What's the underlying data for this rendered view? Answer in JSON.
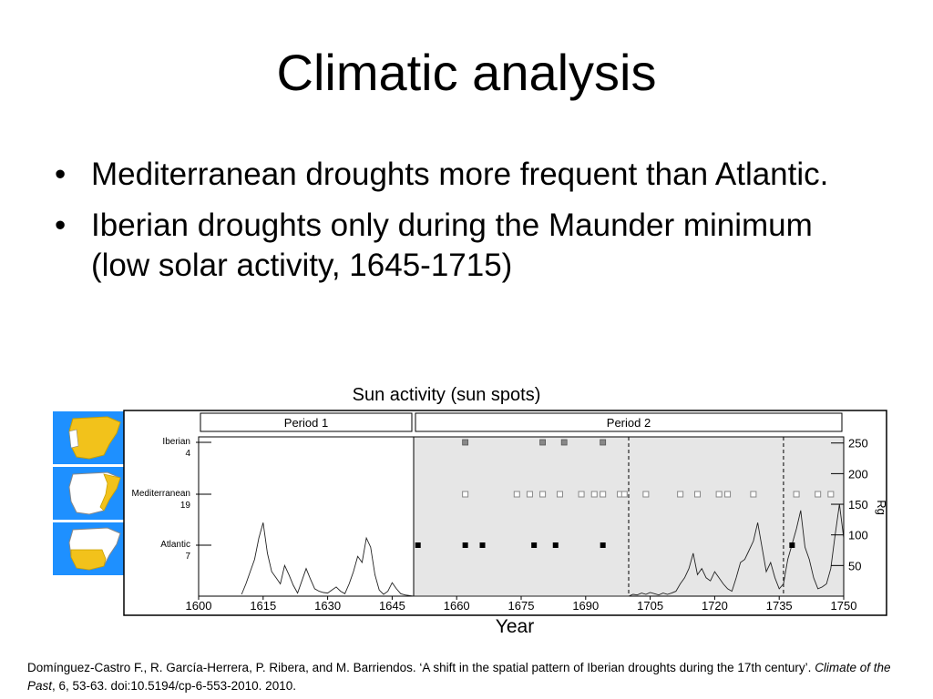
{
  "slide": {
    "title": "Climatic analysis",
    "bullets": [
      "Mediterranean droughts more frequent than Atlantic.",
      "Iberian droughts only during the Maunder minimum (low solar activity, 1645-1715)"
    ],
    "chart_caption": "Sun activity (sun spots)",
    "x_caption": "Year",
    "citation": {
      "part1": "Domínguez-Castro F., R. García-Herrera, P. Ribera, and M. Barriendos. ‘A shift in the spatial pattern of Iberian droughts during the 17th century’. ",
      "journal": "Climate of the Past",
      "part2": ", 6, 53-63. doi:10.5194/cp-6-553-2010. 2010."
    }
  },
  "maps": [
    {
      "name": "iberian",
      "highlight": "all"
    },
    {
      "name": "mediterranean",
      "highlight": "east"
    },
    {
      "name": "atlantic",
      "highlight": "south-west"
    }
  ],
  "colors": {
    "map_bg": "#1e90ff",
    "map_fill": "#f2c21b",
    "map_plain": "#ffffff",
    "shade": "#e6e6e6",
    "marker": "#000000"
  },
  "chart_data": {
    "type": "scatter",
    "periods": [
      {
        "label": "Period 1",
        "from": 1600,
        "to": 1650
      },
      {
        "label": "Period 2",
        "from": 1650,
        "to": 1750
      }
    ],
    "xlim": [
      1600,
      1750
    ],
    "x_ticks": [
      1600,
      1615,
      1630,
      1645,
      1660,
      1675,
      1690,
      1705,
      1720,
      1735,
      1750
    ],
    "y_right_label": "Rg",
    "y_right_ticks": [
      50,
      100,
      150,
      200,
      250
    ],
    "y_right_lim": [
      0,
      260
    ],
    "dashed_lines": [
      1700,
      1736
    ],
    "series": [
      {
        "name": "Iberian",
        "count": "4",
        "style": "gray-filled",
        "years": [
          1662,
          1680,
          1685,
          1694
        ]
      },
      {
        "name": "Mediterranean",
        "count": "19",
        "style": "open",
        "years": [
          1662,
          1674,
          1677,
          1680,
          1684,
          1689,
          1692,
          1694,
          1698,
          1699,
          1704,
          1712,
          1716,
          1721,
          1723,
          1729,
          1739,
          1744,
          1747
        ]
      },
      {
        "name": "Atlantic",
        "count": "7",
        "style": "black-filled",
        "years": [
          1651,
          1662,
          1666,
          1678,
          1683,
          1694,
          1738
        ]
      }
    ],
    "sunspots": [
      [
        1610,
        3
      ],
      [
        1611,
        20
      ],
      [
        1612,
        40
      ],
      [
        1613,
        60
      ],
      [
        1614,
        95
      ],
      [
        1615,
        120
      ],
      [
        1616,
        70
      ],
      [
        1617,
        40
      ],
      [
        1618,
        30
      ],
      [
        1619,
        20
      ],
      [
        1620,
        50
      ],
      [
        1621,
        35
      ],
      [
        1622,
        18
      ],
      [
        1623,
        5
      ],
      [
        1624,
        25
      ],
      [
        1625,
        45
      ],
      [
        1626,
        28
      ],
      [
        1627,
        12
      ],
      [
        1628,
        8
      ],
      [
        1629,
        6
      ],
      [
        1630,
        5
      ],
      [
        1631,
        10
      ],
      [
        1632,
        15
      ],
      [
        1633,
        8
      ],
      [
        1634,
        4
      ],
      [
        1635,
        20
      ],
      [
        1636,
        40
      ],
      [
        1637,
        65
      ],
      [
        1638,
        55
      ],
      [
        1639,
        95
      ],
      [
        1640,
        80
      ],
      [
        1641,
        35
      ],
      [
        1642,
        10
      ],
      [
        1643,
        3
      ],
      [
        1644,
        8
      ],
      [
        1645,
        22
      ],
      [
        1646,
        12
      ],
      [
        1647,
        4
      ],
      [
        1648,
        2
      ],
      [
        1649,
        1
      ],
      [
        1650,
        0
      ],
      [
        1700,
        0
      ],
      [
        1701,
        3
      ],
      [
        1702,
        2
      ],
      [
        1703,
        5
      ],
      [
        1704,
        3
      ],
      [
        1705,
        6
      ],
      [
        1706,
        4
      ],
      [
        1707,
        2
      ],
      [
        1708,
        5
      ],
      [
        1709,
        3
      ],
      [
        1710,
        5
      ],
      [
        1711,
        8
      ],
      [
        1712,
        20
      ],
      [
        1713,
        30
      ],
      [
        1714,
        45
      ],
      [
        1715,
        70
      ],
      [
        1716,
        35
      ],
      [
        1717,
        45
      ],
      [
        1718,
        30
      ],
      [
        1719,
        25
      ],
      [
        1720,
        40
      ],
      [
        1721,
        30
      ],
      [
        1722,
        20
      ],
      [
        1723,
        12
      ],
      [
        1724,
        8
      ],
      [
        1725,
        30
      ],
      [
        1726,
        55
      ],
      [
        1727,
        60
      ],
      [
        1728,
        75
      ],
      [
        1729,
        90
      ],
      [
        1730,
        120
      ],
      [
        1731,
        80
      ],
      [
        1732,
        40
      ],
      [
        1733,
        55
      ],
      [
        1734,
        30
      ],
      [
        1735,
        12
      ],
      [
        1736,
        20
      ],
      [
        1737,
        60
      ],
      [
        1738,
        85
      ],
      [
        1739,
        110
      ],
      [
        1740,
        140
      ],
      [
        1741,
        80
      ],
      [
        1742,
        60
      ],
      [
        1743,
        30
      ],
      [
        1744,
        12
      ],
      [
        1745,
        15
      ],
      [
        1746,
        20
      ],
      [
        1747,
        45
      ],
      [
        1748,
        100
      ],
      [
        1749,
        150
      ],
      [
        1750,
        95
      ]
    ]
  }
}
